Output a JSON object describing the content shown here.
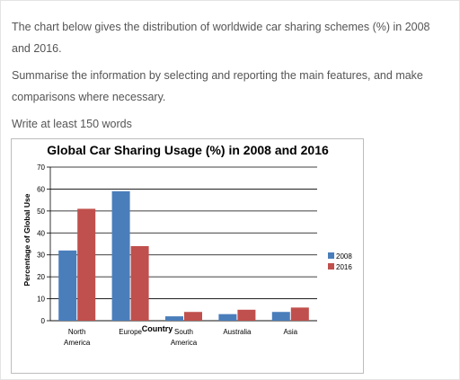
{
  "prompt": {
    "line1": "The chart below gives the distribution of worldwide car sharing schemes (%) in 2008 and 2016.",
    "line2": "Summarise the information by selecting and reporting the main features, and make comparisons where necessary.",
    "line3": "Write at least 150 words"
  },
  "colors": {
    "series_2008": "#4a7ebb",
    "series_2016": "#c0504d"
  },
  "chart_data": {
    "type": "bar",
    "title": "Global Car Sharing Usage (%) in 2008 and 2016",
    "xlabel": "Country",
    "ylabel": "Percentage of Global Use",
    "ylim": [
      0,
      70
    ],
    "yticks": [
      0,
      10,
      20,
      30,
      40,
      50,
      60,
      70
    ],
    "grid": true,
    "legend_position": "right",
    "categories": [
      [
        "North",
        "America"
      ],
      [
        "Europe"
      ],
      [
        "South",
        "America"
      ],
      [
        "Australia"
      ],
      [
        "Asia"
      ]
    ],
    "series": [
      {
        "name": "2008",
        "values": [
          32,
          59,
          2,
          3,
          4
        ]
      },
      {
        "name": "2016",
        "values": [
          51,
          34,
          4,
          5,
          6
        ]
      }
    ]
  }
}
